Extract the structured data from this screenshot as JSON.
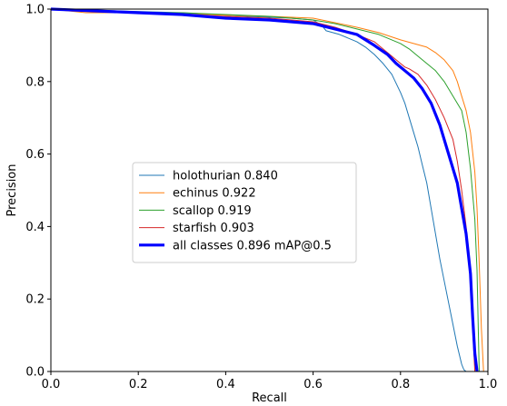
{
  "chart_data": {
    "type": "line",
    "title": "",
    "xlabel": "Recall",
    "ylabel": "Precision",
    "xlim": [
      0,
      1
    ],
    "ylim": [
      0,
      1
    ],
    "x_ticks": [
      "0.0",
      "0.2",
      "0.4",
      "0.6",
      "0.8",
      "1.0"
    ],
    "y_ticks": [
      "0.0",
      "0.2",
      "0.4",
      "0.6",
      "0.8",
      "1.0"
    ],
    "grid": false,
    "legend_position": "center-left",
    "series": [
      {
        "name": "holothurian 0.840",
        "color": "#1f77b4",
        "line_weight": "thin",
        "x": [
          0,
          0.05,
          0.15,
          0.3,
          0.45,
          0.55,
          0.6,
          0.62,
          0.63,
          0.66,
          0.68,
          0.7,
          0.72,
          0.74,
          0.76,
          0.78,
          0.8,
          0.81,
          0.82,
          0.83,
          0.84,
          0.85,
          0.86,
          0.87,
          0.88,
          0.89,
          0.9,
          0.91,
          0.92,
          0.93,
          0.94,
          0.945,
          0.95
        ],
        "y": [
          1.0,
          1.0,
          0.995,
          0.99,
          0.98,
          0.975,
          0.97,
          0.955,
          0.94,
          0.93,
          0.92,
          0.91,
          0.895,
          0.875,
          0.85,
          0.82,
          0.77,
          0.74,
          0.7,
          0.66,
          0.62,
          0.57,
          0.52,
          0.45,
          0.38,
          0.31,
          0.25,
          0.19,
          0.13,
          0.07,
          0.02,
          0.005,
          0.0
        ]
      },
      {
        "name": "echinus 0.922",
        "color": "#ff7f0e",
        "line_weight": "thin",
        "x": [
          0,
          0.08,
          0.2,
          0.35,
          0.5,
          0.6,
          0.7,
          0.75,
          0.8,
          0.83,
          0.86,
          0.88,
          0.9,
          0.92,
          0.93,
          0.94,
          0.95,
          0.96,
          0.97,
          0.975,
          0.98,
          0.985,
          0.99
        ],
        "y": [
          1.0,
          0.99,
          0.99,
          0.985,
          0.98,
          0.975,
          0.95,
          0.935,
          0.915,
          0.905,
          0.895,
          0.88,
          0.86,
          0.83,
          0.8,
          0.76,
          0.72,
          0.66,
          0.55,
          0.45,
          0.3,
          0.12,
          0.0
        ]
      },
      {
        "name": "scallop 0.919",
        "color": "#2ca02c",
        "line_weight": "thin",
        "x": [
          0,
          0.1,
          0.2,
          0.3,
          0.4,
          0.5,
          0.6,
          0.65,
          0.7,
          0.75,
          0.78,
          0.8,
          0.82,
          0.84,
          0.86,
          0.88,
          0.9,
          0.92,
          0.94,
          0.95,
          0.96,
          0.97,
          0.975,
          0.98
        ],
        "y": [
          1.0,
          0.995,
          0.99,
          0.99,
          0.985,
          0.98,
          0.97,
          0.96,
          0.945,
          0.93,
          0.915,
          0.905,
          0.89,
          0.87,
          0.85,
          0.83,
          0.8,
          0.76,
          0.72,
          0.66,
          0.56,
          0.42,
          0.28,
          0.0
        ]
      },
      {
        "name": "starfish 0.903",
        "color": "#d62728",
        "line_weight": "thin",
        "x": [
          0,
          0.1,
          0.2,
          0.3,
          0.4,
          0.5,
          0.6,
          0.65,
          0.7,
          0.74,
          0.77,
          0.79,
          0.8,
          0.81,
          0.82,
          0.84,
          0.86,
          0.88,
          0.9,
          0.92,
          0.93,
          0.94,
          0.95,
          0.96,
          0.965,
          0.97
        ],
        "y": [
          1.0,
          0.995,
          0.99,
          0.985,
          0.98,
          0.975,
          0.965,
          0.95,
          0.93,
          0.91,
          0.88,
          0.86,
          0.85,
          0.84,
          0.835,
          0.82,
          0.79,
          0.75,
          0.7,
          0.64,
          0.58,
          0.5,
          0.4,
          0.28,
          0.12,
          0.0
        ]
      },
      {
        "name": "all classes 0.896 mAP@0.5",
        "color": "#0000ff",
        "line_weight": "thick",
        "x": [
          0,
          0.1,
          0.2,
          0.3,
          0.4,
          0.5,
          0.6,
          0.65,
          0.7,
          0.74,
          0.77,
          0.79,
          0.81,
          0.83,
          0.85,
          0.87,
          0.89,
          0.91,
          0.93,
          0.94,
          0.95,
          0.96,
          0.965,
          0.97,
          0.975
        ],
        "y": [
          1.0,
          0.995,
          0.99,
          0.985,
          0.975,
          0.97,
          0.96,
          0.945,
          0.93,
          0.9,
          0.875,
          0.85,
          0.83,
          0.81,
          0.78,
          0.74,
          0.68,
          0.6,
          0.52,
          0.45,
          0.38,
          0.27,
          0.15,
          0.05,
          0.0
        ]
      }
    ]
  }
}
